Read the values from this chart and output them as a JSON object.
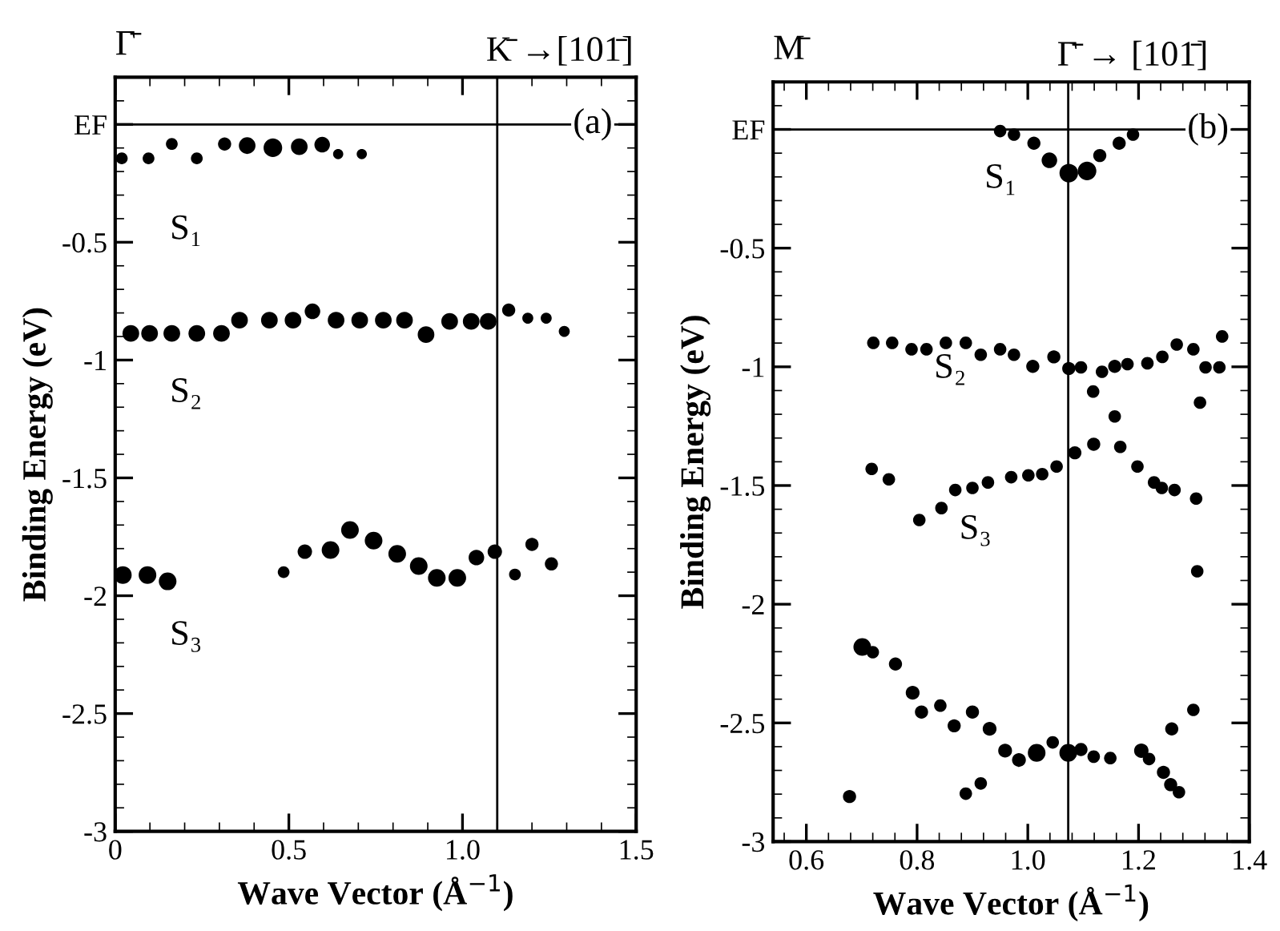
{
  "chart_data": [
    {
      "type": "bubble",
      "xlabel": "Wave Vector (Å$^{−1}$)",
      "ylabel": "Binding Energy (eV)",
      "xlim": [
        0,
        1.5
      ],
      "ylim": [
        -3,
        0.2
      ],
      "xticks": [
        0,
        0.5,
        {
          "value": 1,
          "label": "1.0"
        },
        1.5
      ],
      "yticks": [
        -3,
        -2.5,
        -2,
        -1.5,
        -1,
        -0.5,
        {
          "value": 0,
          "label": "EF"
        }
      ],
      "grid": false,
      "legend": false,
      "marker": "circle",
      "series": [
        {
          "color": "#000000",
          "x": [
            0.019,
            0.096,
            0.163,
            0.235,
            0.315,
            0.38,
            0.454,
            0.53,
            0.596,
            0.642,
            0.71
          ],
          "values": [
            -0.144,
            -0.144,
            -0.083,
            -0.144,
            -0.083,
            -0.09,
            -0.099,
            -0.095,
            -0.086,
            -0.126,
            -0.126
          ],
          "sizes": [
            0.4,
            0.4,
            0.4,
            0.4,
            0.5,
            0.8,
            1,
            0.8,
            0.7,
            0.3,
            0.3
          ]
        },
        {
          "color": "#000000",
          "x": [
            0.045,
            0.099,
            0.163,
            0.235,
            0.306,
            0.358,
            0.444,
            0.512,
            0.568,
            0.636,
            0.704,
            0.772,
            0.833,
            0.895,
            0.963,
            1.025,
            1.074,
            1.133,
            1.188,
            1.241,
            1.293
          ],
          "values": [
            -0.887,
            -0.887,
            -0.887,
            -0.887,
            -0.887,
            -0.831,
            -0.831,
            -0.831,
            -0.793,
            -0.831,
            -0.831,
            -0.831,
            -0.831,
            -0.892,
            -0.836,
            -0.836,
            -0.836,
            -0.788,
            -0.822,
            -0.822,
            -0.878
          ],
          "sizes": [
            0.8,
            0.8,
            0.8,
            0.8,
            0.8,
            0.8,
            0.8,
            0.8,
            0.7,
            0.8,
            0.8,
            0.8,
            0.8,
            0.8,
            0.8,
            0.8,
            0.8,
            0.5,
            0.35,
            0.35,
            0.35
          ]
        },
        {
          "color": "#000000",
          "x": [
            0.022,
            0.093,
            0.151,
            0.485,
            0.546,
            0.62,
            0.676,
            0.744,
            0.812,
            0.874,
            0.926,
            0.985,
            1.04,
            1.093,
            1.151,
            1.2,
            1.256
          ],
          "values": [
            -1.912,
            -1.912,
            -1.939,
            -1.9,
            -1.813,
            -1.806,
            -1.721,
            -1.766,
            -1.822,
            -1.874,
            -1.924,
            -1.924,
            -1.838,
            -1.813,
            -1.91,
            -1.782,
            -1.865
          ],
          "sizes": [
            0.9,
            0.9,
            0.9,
            0.4,
            0.6,
            0.9,
            0.9,
            0.9,
            0.9,
            0.9,
            0.9,
            0.9,
            0.7,
            0.6,
            0.4,
            0.5,
            0.5
          ]
        }
      ],
      "ref_lines": [
        {
          "axis": "y",
          "value": 0,
          "color": "#000000"
        },
        {
          "axis": "x",
          "value": 1.1,
          "color": "#000000"
        }
      ],
      "annotations": [
        "Γ̄",
        {
          "text": "K̄ →[101̄]",
          "x": 1.1,
          "y": 0.2
        },
        {
          "text": "(a)",
          "x": 1.318,
          "y": 0
        },
        "S₁",
        "S₂",
        "S₃"
      ]
    },
    {
      "type": "bubble",
      "xlabel": "Wave Vector (Å$^{−1}$)",
      "ylabel": "Binding Energy (eV)",
      "xlim": [
        0.54,
        1.4
      ],
      "ylim": [
        -3,
        0.2
      ],
      "xticks": [
        0.6,
        0.8,
        {
          "value": 1,
          "label": "1.0"
        },
        1.2,
        1.4
      ],
      "yticks": [
        -3,
        -2.5,
        -2,
        -1.5,
        -1,
        -0.5,
        {
          "value": 0,
          "label": "EF"
        }
      ],
      "grid": false,
      "legend": false,
      "marker": "circle",
      "series": [
        {
          "color": "#000000",
          "x": [
            0.95,
            0.975,
            1.011,
            1.039,
            1.074,
            1.107,
            1.13,
            1.165,
            1.19
          ],
          "values": [
            -0.007,
            -0.022,
            -0.058,
            -0.13,
            -0.184,
            -0.175,
            -0.11,
            -0.058,
            -0.022
          ],
          "sizes": [
            0.45,
            0.45,
            0.5,
            0.7,
            1,
            1,
            0.5,
            0.5,
            0.45
          ]
        },
        {
          "color": "#000000",
          "x": [
            0.721,
            0.755,
            0.79,
            0.817,
            0.852,
            0.888,
            0.915,
            0.95,
            0.975,
            1.009,
            1.047,
            1.074,
            1.096,
            1.118,
            1.134,
            1.157,
            1.18,
            1.216,
            1.243,
            1.269,
            1.299,
            1.321,
            1.346,
            1.351
          ],
          "values": [
            -0.899,
            -0.899,
            -0.926,
            -0.926,
            -0.899,
            -0.899,
            -0.949,
            -0.926,
            -0.949,
            -0.998,
            -0.958,
            -1.007,
            -1.002,
            -1.104,
            -1.021,
            -0.998,
            -0.989,
            -0.985,
            -0.958,
            -0.906,
            -0.926,
            -1.002,
            -1.002,
            -0.872
          ],
          "sizes": [
            0.45,
            0.45,
            0.45,
            0.45,
            0.45,
            0.45,
            0.45,
            0.45,
            0.45,
            0.5,
            0.5,
            0.5,
            0.45,
            0.45,
            0.45,
            0.5,
            0.45,
            0.45,
            0.45,
            0.45,
            0.45,
            0.45,
            0.45,
            0.45
          ]
        },
        {
          "color": "#000000",
          "x": [
            0.718,
            0.749,
            0.804,
            0.844,
            0.869,
            0.9,
            0.928,
            0.97,
            1.001,
            1.026,
            1.052,
            1.085,
            1.119,
            1.167,
            1.198,
            1.228,
            1.242,
            1.265,
            1.304,
            1.157,
            1.311,
            1.306
          ],
          "values": [
            -1.43,
            -1.474,
            -1.645,
            -1.595,
            -1.519,
            -1.51,
            -1.487,
            -1.465,
            -1.457,
            -1.452,
            -1.42,
            -1.362,
            -1.326,
            -1.337,
            -1.42,
            -1.487,
            -1.51,
            -1.519,
            -1.555,
            -1.209,
            -1.151,
            -1.861
          ],
          "sizes": [
            0.45,
            0.45,
            0.45,
            0.45,
            0.45,
            0.45,
            0.45,
            0.45,
            0.45,
            0.45,
            0.45,
            0.5,
            0.5,
            0.45,
            0.45,
            0.45,
            0.45,
            0.45,
            0.45,
            0.45,
            0.45,
            0.45
          ]
        },
        {
          "color": "#000000",
          "x": [
            0.678,
            0.701,
            0.72,
            0.761,
            0.792,
            0.808,
            0.842,
            0.867,
            0.888,
            0.9,
            0.915,
            0.931,
            0.959,
            0.984,
            1.016,
            1.045,
            1.073,
            1.096,
            1.119,
            1.149,
            1.205,
            1.219,
            1.245,
            1.258,
            1.273,
            1.26,
            1.299
          ],
          "values": [
            -2.81,
            -2.18,
            -2.202,
            -2.252,
            -2.373,
            -2.454,
            -2.427,
            -2.512,
            -2.798,
            -2.454,
            -2.755,
            -2.525,
            -2.617,
            -2.656,
            -2.626,
            -2.582,
            -2.626,
            -2.612,
            -2.642,
            -2.648,
            -2.617,
            -2.652,
            -2.708,
            -2.76,
            -2.792,
            -2.525,
            -2.445
          ],
          "sizes": [
            0.5,
            0.9,
            0.45,
            0.5,
            0.55,
            0.5,
            0.45,
            0.5,
            0.45,
            0.5,
            0.45,
            0.55,
            0.55,
            0.55,
            0.9,
            0.45,
            0.9,
            0.5,
            0.45,
            0.45,
            0.6,
            0.45,
            0.5,
            0.5,
            0.45,
            0.5,
            0.45
          ]
        }
      ],
      "ref_lines": [
        {
          "axis": "y",
          "value": 0,
          "color": "#000000"
        },
        {
          "axis": "x",
          "value": 1.073,
          "color": "#000000"
        }
      ],
      "annotations": [
        "M̄",
        {
          "text": "Γ̄ → [101̄]",
          "x": 1.073,
          "y": 0.2
        },
        {
          "text": "(b)",
          "x": 1.288,
          "y": 0
        },
        "S₁",
        "S₂",
        "S₃"
      ]
    }
  ]
}
